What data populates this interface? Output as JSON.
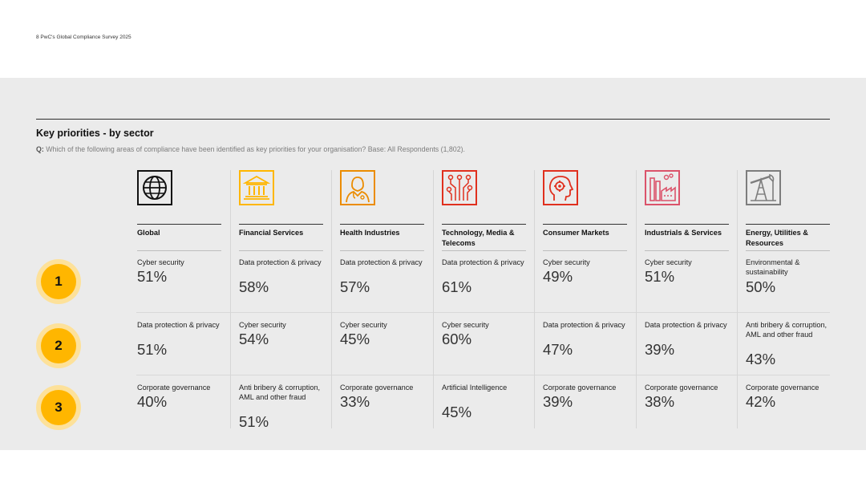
{
  "page_header": "8  PwC's Global Compliance Survey 2025",
  "title": "Key priorities - by sector",
  "question_prefix": "Q:",
  "question_text": "Which of the following areas of compliance have been identified as key priorities for your organisation? Base: All Respondents (1,802).",
  "colors": {
    "accent": "#ffb600",
    "accent_light": "#fde19a",
    "icon_red": "#e0301e",
    "icon_orange": "#eb8c00",
    "icon_pink": "#db536a",
    "icon_grey": "#7d7d7d"
  },
  "ranks": [
    "1",
    "2",
    "3"
  ],
  "sectors": [
    {
      "name": "Global",
      "icon": "globe-icon",
      "priorities": [
        {
          "label": "Cyber security",
          "value": "51%"
        },
        {
          "label": "Data protection & privacy",
          "value": "51%"
        },
        {
          "label": "Corporate governance",
          "value": "40%"
        }
      ]
    },
    {
      "name": "Financial Services",
      "icon": "bank-icon",
      "priorities": [
        {
          "label": "Data protection & privacy",
          "value": "58%"
        },
        {
          "label": "Cyber security",
          "value": "54%"
        },
        {
          "label": "Anti bribery & corruption, AML and other fraud",
          "value": "51%"
        }
      ]
    },
    {
      "name": "Health Industries",
      "icon": "doctor-icon",
      "priorities": [
        {
          "label": "Data protection & privacy",
          "value": "57%"
        },
        {
          "label": "Cyber security",
          "value": "45%"
        },
        {
          "label": "Corporate governance",
          "value": "33%"
        }
      ]
    },
    {
      "name": "Technology, Media & Telecoms",
      "icon": "circuit-icon",
      "priorities": [
        {
          "label": "Data protection & privacy",
          "value": "61%"
        },
        {
          "label": "Cyber security",
          "value": "60%"
        },
        {
          "label": "Artificial Intelligence",
          "value": "45%"
        }
      ]
    },
    {
      "name": "Consumer Markets",
      "icon": "head-gear-icon",
      "priorities": [
        {
          "label": "Cyber security",
          "value": "49%"
        },
        {
          "label": "Data protection & privacy",
          "value": "47%"
        },
        {
          "label": "Corporate governance",
          "value": "39%"
        }
      ]
    },
    {
      "name": "Industrials & Services",
      "icon": "factory-icon",
      "priorities": [
        {
          "label": "Cyber security",
          "value": "51%"
        },
        {
          "label": "Data protection & privacy",
          "value": "39%"
        },
        {
          "label": "Corporate governance",
          "value": "38%"
        }
      ]
    },
    {
      "name": "Energy, Utilities & Resources",
      "icon": "oil-pump-icon",
      "priorities": [
        {
          "label": "Environmental & sustainability",
          "value": "50%"
        },
        {
          "label": "Anti bribery & corruption, AML and other fraud",
          "value": "43%"
        },
        {
          "label": "Corporate governance",
          "value": "42%"
        }
      ]
    }
  ]
}
